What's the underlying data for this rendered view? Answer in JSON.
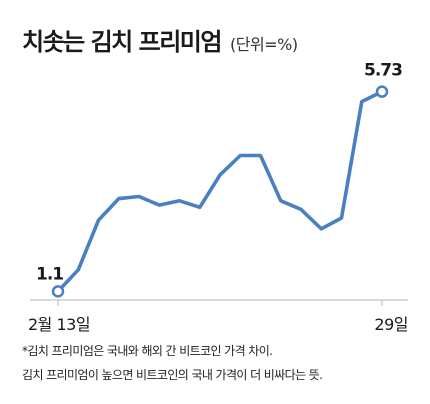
{
  "title": "치솟는 김치 프리미엄",
  "unit": "(단위=%)",
  "chart_data": {
    "type": "line",
    "title": "치솟는 김치 프리미엄",
    "unit": "%",
    "x_start_label": "2월 13일",
    "x_end_label": "29일",
    "values": [
      1.1,
      1.6,
      2.75,
      3.25,
      3.3,
      3.1,
      3.2,
      3.05,
      3.8,
      4.25,
      4.25,
      3.2,
      3.0,
      2.55,
      2.8,
      5.5,
      5.73
    ],
    "labeled_points": [
      {
        "index": 0,
        "label": "1.1"
      },
      {
        "index": 16,
        "label": "5.73"
      }
    ],
    "ylim": [
      0.9,
      6.0
    ],
    "line_color": "#4a7fc1",
    "grid": false,
    "legend": "none"
  },
  "footnotes": [
    "*김치 프리미엄은 국내와 해외 간 비트코인 가격 차이.",
    "김치 프리미엄이 높으면 비트코인의 국내 가격이 더 비싸다는 뜻."
  ]
}
